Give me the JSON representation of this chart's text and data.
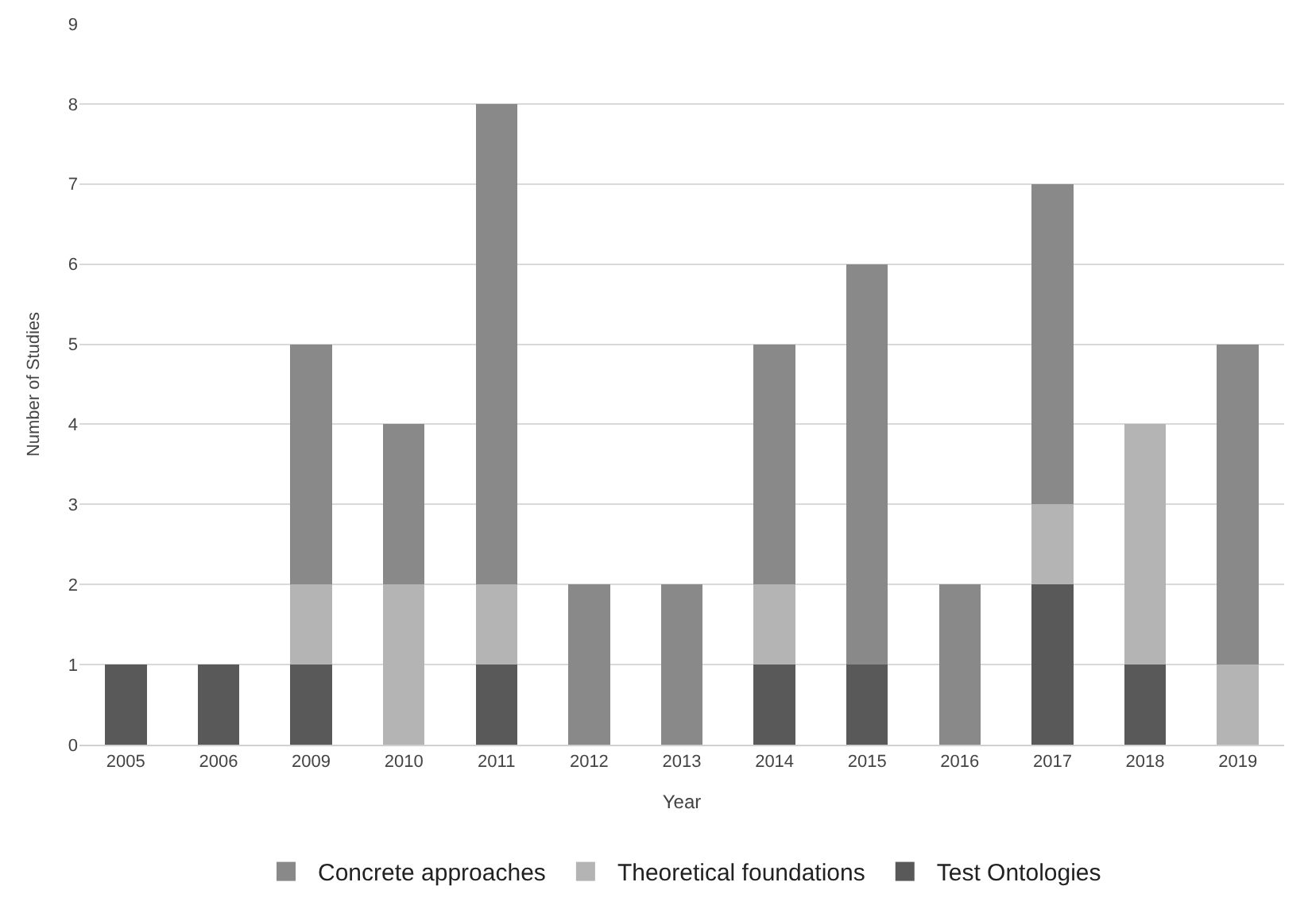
{
  "chart_data": {
    "type": "bar",
    "stacked": true,
    "xlabel": "Year",
    "ylabel": "Number of Studies",
    "categories": [
      "2005",
      "2006",
      "2009",
      "2010",
      "2011",
      "2012",
      "2013",
      "2014",
      "2015",
      "2016",
      "2017",
      "2018",
      "2019"
    ],
    "series": [
      {
        "name": "Test Ontologies",
        "color": "#595959",
        "values": [
          1,
          1,
          1,
          0,
          1,
          0,
          0,
          1,
          1,
          0,
          2,
          1,
          0
        ]
      },
      {
        "name": "Theoretical foundations",
        "color": "#b4b4b4",
        "values": [
          0,
          0,
          1,
          2,
          1,
          0,
          0,
          1,
          0,
          0,
          1,
          3,
          1
        ]
      },
      {
        "name": "Concrete approaches",
        "color": "#898989",
        "values": [
          0,
          0,
          3,
          2,
          6,
          2,
          2,
          3,
          5,
          2,
          4,
          0,
          4
        ]
      }
    ],
    "ylim": [
      0,
      9
    ],
    "yticks": [
      0,
      1,
      2,
      3,
      4,
      5,
      6,
      7,
      8,
      9
    ],
    "grid": "y",
    "legend": "bottom"
  }
}
